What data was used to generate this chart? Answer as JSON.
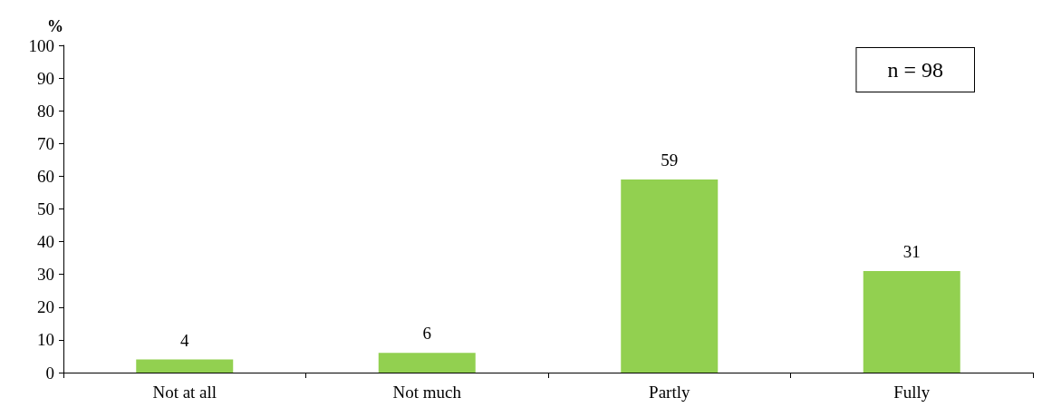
{
  "chart_data": {
    "type": "bar",
    "ylabel": "%",
    "categories": [
      "Not at all",
      "Not much",
      "Partly",
      "Fully"
    ],
    "values": [
      4,
      6,
      59,
      31
    ],
    "color": "#92d050",
    "ylim": [
      0,
      100
    ],
    "yticks": [
      0,
      10,
      20,
      30,
      40,
      50,
      60,
      70,
      80,
      90,
      100
    ],
    "data_labels": true,
    "grid": false,
    "annotations": [
      "n = 98"
    ]
  }
}
